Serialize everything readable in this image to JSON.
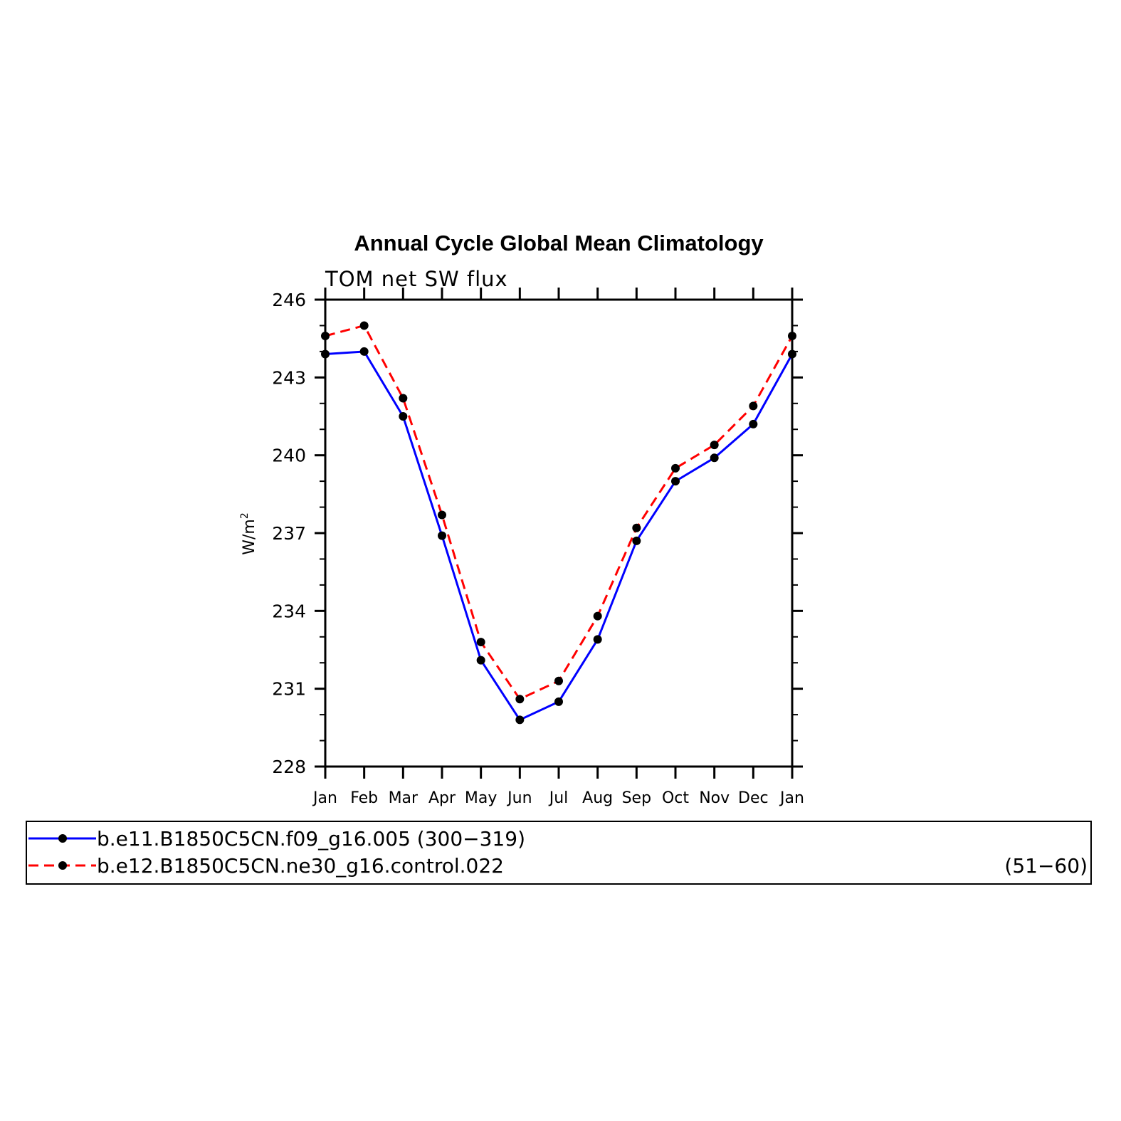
{
  "chart_data": {
    "type": "line",
    "title": "Annual Cycle Global Mean Climatology",
    "subtitle": "TOM net SW flux",
    "ylabel_base": "W/m",
    "ylabel_sup": "2",
    "xlabel": "",
    "categories": [
      "Jan",
      "Feb",
      "Mar",
      "Apr",
      "May",
      "Jun",
      "Jul",
      "Aug",
      "Sep",
      "Oct",
      "Nov",
      "Dec",
      "Jan"
    ],
    "ylim": [
      228,
      246
    ],
    "yticks": [
      "228",
      "231",
      "234",
      "237",
      "240",
      "243",
      "246"
    ],
    "grid": false,
    "legend_position": "bottom",
    "series": [
      {
        "name": "b.e11.B1850C5CN.f09_g16.005 (300−319)",
        "range": "",
        "color": "#0000ff",
        "dash": "solid",
        "values": [
          243.9,
          244.0,
          241.5,
          236.9,
          232.1,
          229.8,
          230.5,
          232.9,
          236.7,
          239.0,
          239.9,
          241.2,
          243.9
        ]
      },
      {
        "name": "b.e12.B1850C5CN.ne30_g16.control.022",
        "range": "(51−60)",
        "color": "#ff0000",
        "dash": "dashed",
        "values": [
          244.6,
          245.0,
          242.2,
          237.7,
          232.8,
          230.6,
          231.3,
          233.8,
          237.2,
          239.5,
          240.4,
          241.9,
          244.6
        ]
      }
    ]
  }
}
